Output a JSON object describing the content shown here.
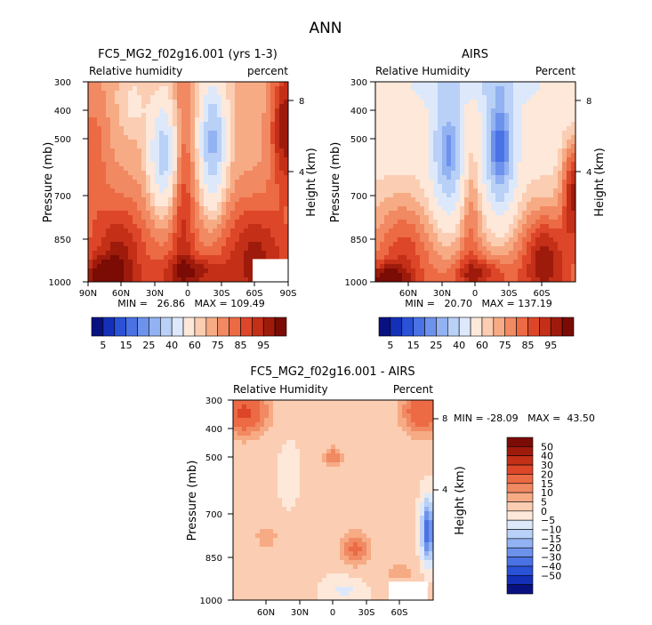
{
  "page_title": "ANN",
  "colors": {
    "full": [
      "#08117f",
      "#1530b8",
      "#2a52d6",
      "#4a72e4",
      "#6d92ec",
      "#93b2f2",
      "#b9d0f7",
      "#dde9fb",
      "#fde8da",
      "#fbcdb2",
      "#f7ab85",
      "#f18962",
      "#ec6a44",
      "#dd4628",
      "#c32f17",
      "#9e1b0c",
      "#7a0b05"
    ],
    "diff": [
      "#08117f",
      "#1530b8",
      "#2a52d6",
      "#4a72e4",
      "#6d92ec",
      "#93b2f2",
      "#b9d0f7",
      "#dde9fb",
      "#fde8da",
      "#fbcdb2",
      "#f7ab85",
      "#f18962",
      "#ec6a44",
      "#dd4628",
      "#c32f17",
      "#9e1b0c",
      "#7a0b05"
    ]
  },
  "chart_data": [
    {
      "type": "heatmap",
      "id": "model",
      "title": "FC5_MG2_f02g16.001 (yrs 1-3)",
      "left_label": "Relative humidity",
      "right_label": "percent",
      "ylabel": "Pressure (mb)",
      "y2label": "Height (km)",
      "x_ticks": [
        "90N",
        "60N",
        "30N",
        "0",
        "30S",
        "60S",
        "90S"
      ],
      "y_ticks": [
        "300",
        "400",
        "500",
        "700",
        "850",
        "1000"
      ],
      "y2_ticks": [
        "8",
        "4"
      ],
      "stats": "MIN =   26.86   MAX = 109.49",
      "min": 26.86,
      "max": 109.49,
      "x_range": [
        90,
        -90
      ],
      "y_range": [
        1000,
        300
      ],
      "masked_region": {
        "lat": [
          -58,
          -90
        ],
        "pressure": [
          920,
          1000
        ]
      }
    },
    {
      "type": "heatmap",
      "id": "obs",
      "title": "AIRS",
      "left_label": "Relative Humidity",
      "right_label": "Percent",
      "ylabel": "Pressure (mb)",
      "y2label": "Height (km)",
      "x_ticks": [
        "60N",
        "30N",
        "0",
        "30S",
        "60S"
      ],
      "y_ticks": [
        "300",
        "400",
        "500",
        "700",
        "850",
        "1000"
      ],
      "y2_ticks": [
        "8",
        "4"
      ],
      "stats": "MIN =   20.70   MAX = 137.19",
      "min": 20.7,
      "max": 137.19,
      "x_range": [
        90,
        -90
      ],
      "y_range": [
        1000,
        300
      ]
    },
    {
      "type": "heatmap",
      "id": "diff",
      "title": "FC5_MG2_f02g16.001 - AIRS",
      "left_label": "Relative Humidity",
      "right_label": "Percent",
      "ylabel": "Pressure (mb)",
      "y2label": "Height (km)",
      "x_ticks": [
        "60N",
        "30N",
        "0",
        "30S",
        "60S"
      ],
      "y_ticks": [
        "300",
        "400",
        "500",
        "700",
        "850",
        "1000"
      ],
      "y2_ticks": [
        "8",
        "4"
      ],
      "stats": "MIN = -28.09   MAX =  43.50",
      "min": -28.09,
      "max": 43.5,
      "x_range": [
        90,
        -90
      ],
      "y_range": [
        1000,
        300
      ],
      "masked_region": {
        "lat": [
          -50,
          -85
        ],
        "pressure": [
          935,
          1000
        ]
      }
    }
  ],
  "colorbar_full": {
    "labels": [
      "5",
      "15",
      "25",
      "40",
      "60",
      "75",
      "85",
      "95"
    ]
  },
  "colorbar_diff": {
    "labels": [
      "50",
      "40",
      "30",
      "20",
      "15",
      "10",
      "5",
      "0",
      "−5",
      "−10",
      "−15",
      "−20",
      "−30",
      "−40",
      "−50"
    ]
  }
}
